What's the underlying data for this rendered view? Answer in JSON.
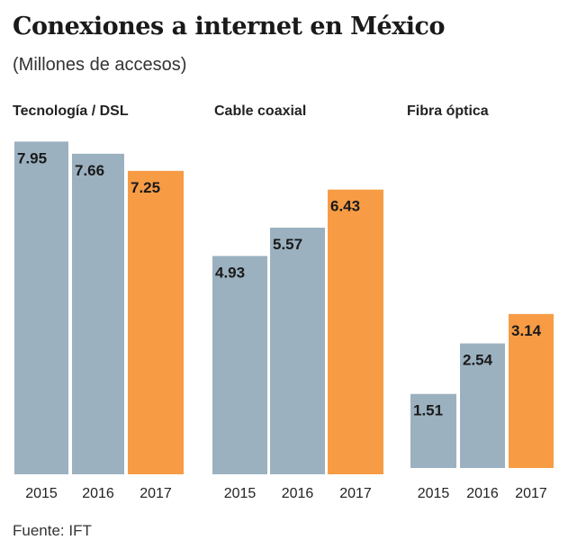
{
  "title": "Conexiones a internet en México",
  "subtitle": "(Millones de accesos)",
  "source": "Fuente: IFT",
  "colors": {
    "past": "#9bb1c0",
    "current": "#f79c45"
  },
  "chart_data": [
    {
      "type": "bar",
      "title": "Tecnología / DSL",
      "categories": [
        "2015",
        "2016",
        "2017"
      ],
      "values": [
        7.95,
        7.66,
        7.25
      ],
      "value_labels": [
        "7.95",
        "7.66",
        "7.25"
      ],
      "highlight": "2017"
    },
    {
      "type": "bar",
      "title": "Cable coaxial",
      "categories": [
        "2015",
        "2016",
        "2017"
      ],
      "values": [
        4.93,
        5.57,
        6.43
      ],
      "value_labels": [
        "4.93",
        "5.57",
        "6.43"
      ],
      "highlight": "2017"
    },
    {
      "type": "bar",
      "title": "Fibra óptica",
      "categories": [
        "2015",
        "2016",
        "2017"
      ],
      "values": [
        1.51,
        2.54,
        3.14
      ],
      "value_labels": [
        "1.51",
        "2.54",
        "3.14"
      ],
      "highlight": "2017"
    }
  ]
}
